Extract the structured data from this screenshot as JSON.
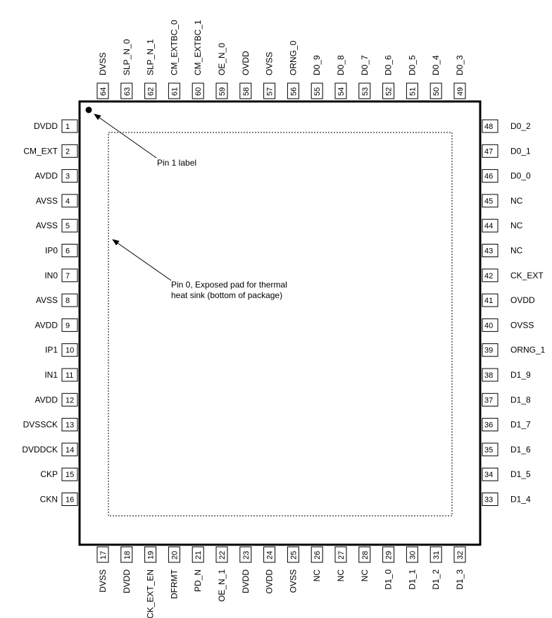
{
  "diagram": {
    "pin1_label": "Pin 1 label",
    "pin0_label_line1": "Pin 0, Exposed pad for thermal",
    "pin0_label_line2": "heat sink (bottom of package)",
    "pins_left": [
      {
        "num": "1",
        "name": "DVDD"
      },
      {
        "num": "2",
        "name": "CM_EXT"
      },
      {
        "num": "3",
        "name": "AVDD"
      },
      {
        "num": "4",
        "name": "AVSS"
      },
      {
        "num": "5",
        "name": "AVSS"
      },
      {
        "num": "6",
        "name": "IP0"
      },
      {
        "num": "7",
        "name": "IN0"
      },
      {
        "num": "8",
        "name": "AVSS"
      },
      {
        "num": "9",
        "name": "AVDD"
      },
      {
        "num": "10",
        "name": "IP1"
      },
      {
        "num": "11",
        "name": "IN1"
      },
      {
        "num": "12",
        "name": "AVDD"
      },
      {
        "num": "13",
        "name": "DVSSCK"
      },
      {
        "num": "14",
        "name": "DVDDCK"
      },
      {
        "num": "15",
        "name": "CKP"
      },
      {
        "num": "16",
        "name": "CKN"
      }
    ],
    "pins_bottom": [
      {
        "num": "17",
        "name": "DVSS"
      },
      {
        "num": "18",
        "name": "DVDD"
      },
      {
        "num": "19",
        "name": "CK_EXT_EN"
      },
      {
        "num": "20",
        "name": "DFRMT"
      },
      {
        "num": "21",
        "name": "PD_N"
      },
      {
        "num": "22",
        "name": "OE_N_1"
      },
      {
        "num": "23",
        "name": "DVDD"
      },
      {
        "num": "24",
        "name": "OVDD"
      },
      {
        "num": "25",
        "name": "OVSS"
      },
      {
        "num": "26",
        "name": "NC"
      },
      {
        "num": "27",
        "name": "NC"
      },
      {
        "num": "28",
        "name": "NC"
      },
      {
        "num": "29",
        "name": "D1_0"
      },
      {
        "num": "30",
        "name": "D1_1"
      },
      {
        "num": "31",
        "name": "D1_2"
      },
      {
        "num": "32",
        "name": "D1_3"
      }
    ],
    "pins_right": [
      {
        "num": "48",
        "name": "D0_2"
      },
      {
        "num": "47",
        "name": "D0_1"
      },
      {
        "num": "46",
        "name": "D0_0"
      },
      {
        "num": "45",
        "name": "NC"
      },
      {
        "num": "44",
        "name": "NC"
      },
      {
        "num": "43",
        "name": "NC"
      },
      {
        "num": "42",
        "name": "CK_EXT"
      },
      {
        "num": "41",
        "name": "OVDD"
      },
      {
        "num": "40",
        "name": "OVSS"
      },
      {
        "num": "39",
        "name": "ORNG_1"
      },
      {
        "num": "38",
        "name": "D1_9"
      },
      {
        "num": "37",
        "name": "D1_8"
      },
      {
        "num": "36",
        "name": "D1_7"
      },
      {
        "num": "35",
        "name": "D1_6"
      },
      {
        "num": "34",
        "name": "D1_5"
      },
      {
        "num": "33",
        "name": "D1_4"
      }
    ],
    "pins_top": [
      {
        "num": "64",
        "name": "DVSS"
      },
      {
        "num": "63",
        "name": "SLP_N_0"
      },
      {
        "num": "62",
        "name": "SLP_N_1"
      },
      {
        "num": "61",
        "name": "CM_EXTBC_0"
      },
      {
        "num": "60",
        "name": "CM_EXTBC_1"
      },
      {
        "num": "59",
        "name": "OE_N_0"
      },
      {
        "num": "58",
        "name": "OVDD"
      },
      {
        "num": "57",
        "name": "OVSS"
      },
      {
        "num": "56",
        "name": "ORNG_0"
      },
      {
        "num": "55",
        "name": "D0_9"
      },
      {
        "num": "54",
        "name": "D0_8"
      },
      {
        "num": "53",
        "name": "D0_7"
      },
      {
        "num": "52",
        "name": "D0_6"
      },
      {
        "num": "51",
        "name": "D0_5"
      },
      {
        "num": "50",
        "name": "D0_4"
      },
      {
        "num": "49",
        "name": "D0_3"
      }
    ]
  }
}
